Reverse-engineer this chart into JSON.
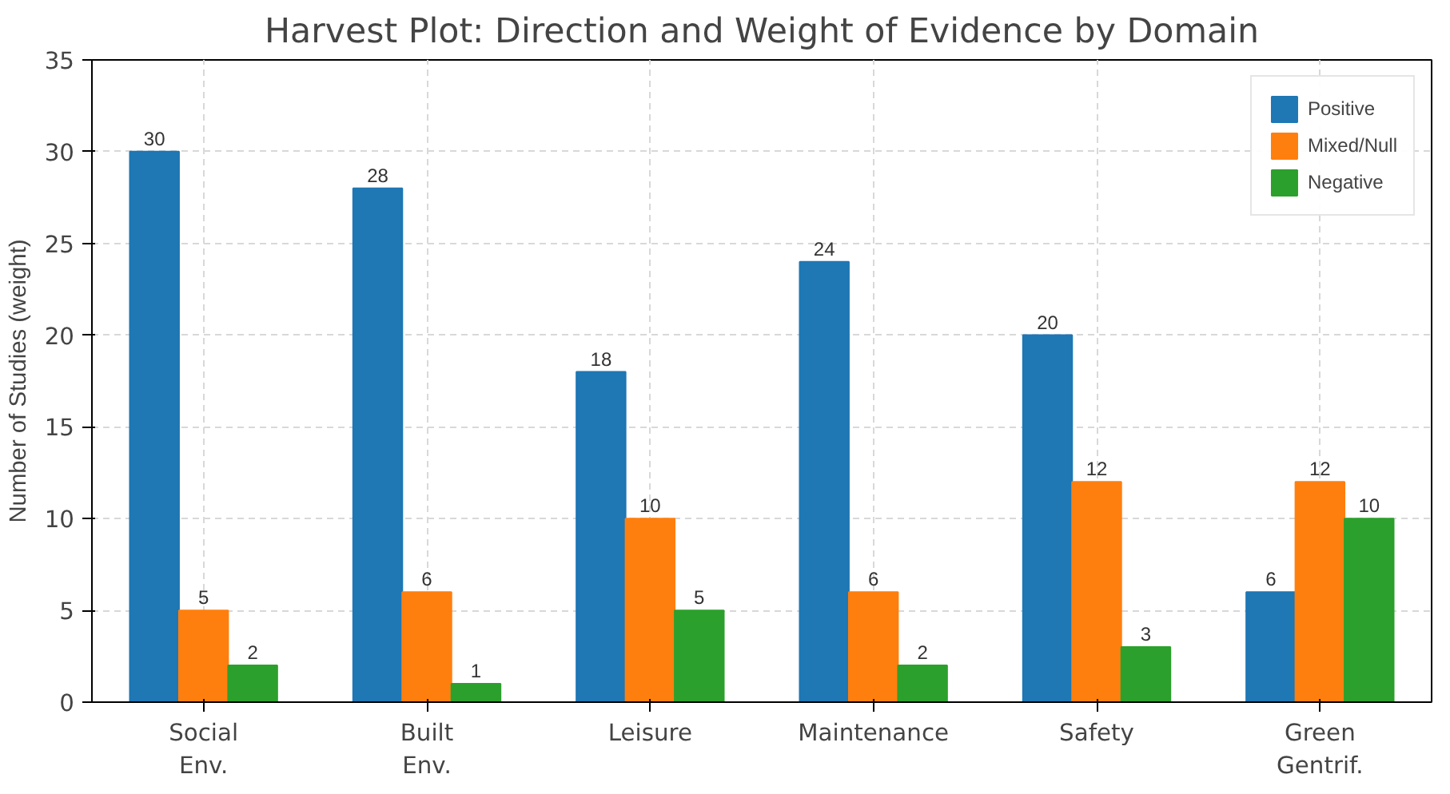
{
  "chart_data": {
    "type": "bar",
    "title": "Harvest Plot: Direction and Weight of Evidence by Domain",
    "ylabel": "Number of Studies (weight)",
    "categories": [
      "Social\nEnv.",
      "Built\nEnv.",
      "Leisure",
      "Maintenance",
      "Safety",
      "Green\nGentrif."
    ],
    "series": [
      {
        "name": "Positive",
        "color": "#1f77b4",
        "values": [
          30,
          28,
          18,
          24,
          20,
          6
        ]
      },
      {
        "name": "Mixed/Null",
        "color": "#ff7f0e",
        "values": [
          5,
          6,
          10,
          6,
          12,
          12
        ]
      },
      {
        "name": "Negative",
        "color": "#2ca02c",
        "values": [
          2,
          1,
          5,
          2,
          3,
          10
        ]
      }
    ],
    "ylim": [
      0,
      35
    ],
    "yticks": [
      0,
      5,
      10,
      15,
      20,
      25,
      30,
      35
    ],
    "grid": true,
    "legend": "top right",
    "data_labels": true
  }
}
